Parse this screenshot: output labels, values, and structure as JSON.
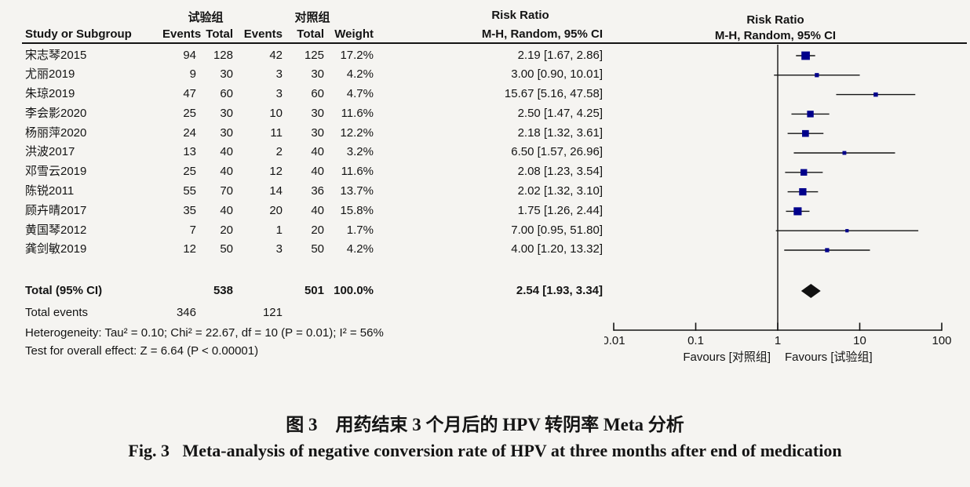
{
  "header": {
    "group_exp": "试验组",
    "group_ctrl": "对照组",
    "risk_ratio": "Risk Ratio",
    "method": "M-H, Random, 95% CI",
    "col_study": "Study or Subgroup",
    "col_events": "Events",
    "col_total": "Total",
    "col_weight": "Weight"
  },
  "chart_data": {
    "type": "forest",
    "effect_measure": "Risk Ratio",
    "model": "M-H, Random, 95% CI",
    "xscale": "log",
    "xlim": [
      0.01,
      100
    ],
    "xticks": [
      "0.01",
      "0.1",
      "1",
      "10",
      "100"
    ],
    "favours_left": "Favours [对照组]",
    "favours_right": "Favours [试验组]",
    "marker_color": "#00008B",
    "line_color": "#141414",
    "studies": [
      {
        "name": "宋志琴2015",
        "e_exp": "94",
        "t_exp": "128",
        "e_ctrl": "42",
        "t_ctrl": "125",
        "weight": "17.2%",
        "weight_val": 17.2,
        "rr": 2.19,
        "lo": 1.67,
        "hi": 2.86,
        "label": "2.19 [1.67, 2.86]"
      },
      {
        "name": "尤丽2019",
        "e_exp": "9",
        "t_exp": "30",
        "e_ctrl": "3",
        "t_ctrl": "30",
        "weight": "4.2%",
        "weight_val": 4.2,
        "rr": 3.0,
        "lo": 0.9,
        "hi": 10.01,
        "label": "3.00 [0.90, 10.01]"
      },
      {
        "name": "朱琼2019",
        "e_exp": "47",
        "t_exp": "60",
        "e_ctrl": "3",
        "t_ctrl": "60",
        "weight": "4.7%",
        "weight_val": 4.7,
        "rr": 15.67,
        "lo": 5.16,
        "hi": 47.58,
        "label": "15.67 [5.16, 47.58]"
      },
      {
        "name": "李会影2020",
        "e_exp": "25",
        "t_exp": "30",
        "e_ctrl": "10",
        "t_ctrl": "30",
        "weight": "11.6%",
        "weight_val": 11.6,
        "rr": 2.5,
        "lo": 1.47,
        "hi": 4.25,
        "label": "2.50 [1.47, 4.25]"
      },
      {
        "name": "杨丽萍2020",
        "e_exp": "24",
        "t_exp": "30",
        "e_ctrl": "11",
        "t_ctrl": "30",
        "weight": "12.2%",
        "weight_val": 12.2,
        "rr": 2.18,
        "lo": 1.32,
        "hi": 3.61,
        "label": "2.18 [1.32, 3.61]"
      },
      {
        "name": "洪波2017",
        "e_exp": "13",
        "t_exp": "40",
        "e_ctrl": "2",
        "t_ctrl": "40",
        "weight": "3.2%",
        "weight_val": 3.2,
        "rr": 6.5,
        "lo": 1.57,
        "hi": 26.96,
        "label": "6.50 [1.57, 26.96]"
      },
      {
        "name": "邓雪云2019",
        "e_exp": "25",
        "t_exp": "40",
        "e_ctrl": "12",
        "t_ctrl": "40",
        "weight": "11.6%",
        "weight_val": 11.6,
        "rr": 2.08,
        "lo": 1.23,
        "hi": 3.54,
        "label": "2.08 [1.23, 3.54]"
      },
      {
        "name": "陈锐2011",
        "e_exp": "55",
        "t_exp": "70",
        "e_ctrl": "14",
        "t_ctrl": "36",
        "weight": "13.7%",
        "weight_val": 13.7,
        "rr": 2.02,
        "lo": 1.32,
        "hi": 3.1,
        "label": "2.02 [1.32, 3.10]"
      },
      {
        "name": "顾卉晴2017",
        "e_exp": "35",
        "t_exp": "40",
        "e_ctrl": "20",
        "t_ctrl": "40",
        "weight": "15.8%",
        "weight_val": 15.8,
        "rr": 1.75,
        "lo": 1.26,
        "hi": 2.44,
        "label": "1.75 [1.26, 2.44]"
      },
      {
        "name": "黄国琴2012",
        "e_exp": "7",
        "t_exp": "20",
        "e_ctrl": "1",
        "t_ctrl": "20",
        "weight": "1.7%",
        "weight_val": 1.7,
        "rr": 7.0,
        "lo": 0.95,
        "hi": 51.8,
        "label": "7.00 [0.95, 51.80]"
      },
      {
        "name": "龚剑敏2019",
        "e_exp": "12",
        "t_exp": "50",
        "e_ctrl": "3",
        "t_ctrl": "50",
        "weight": "4.2%",
        "weight_val": 4.2,
        "rr": 4.0,
        "lo": 1.2,
        "hi": 13.32,
        "label": "4.00 [1.20, 13.32]"
      }
    ],
    "total": {
      "label": "Total (95% CI)",
      "t_exp": "538",
      "t_ctrl": "501",
      "weight": "100.0%",
      "rr": 2.54,
      "lo": 1.93,
      "hi": 3.34,
      "rr_label": "2.54 [1.93, 3.34]"
    },
    "total_events": {
      "label": "Total events",
      "exp": "346",
      "ctrl": "121"
    },
    "heterogeneity": "Heterogeneity: Tau² = 0.10; Chi² = 22.67, df = 10 (P = 0.01); I² = 56%",
    "overall_effect": "Test for overall effect: Z = 6.64 (P < 0.00001)"
  },
  "caption": {
    "zh": "图 3　用药结束 3 个月后的 HPV 转阴率 Meta 分析",
    "en": "Fig. 3   Meta-analysis of negative conversion rate of HPV at three months after end of medication"
  }
}
